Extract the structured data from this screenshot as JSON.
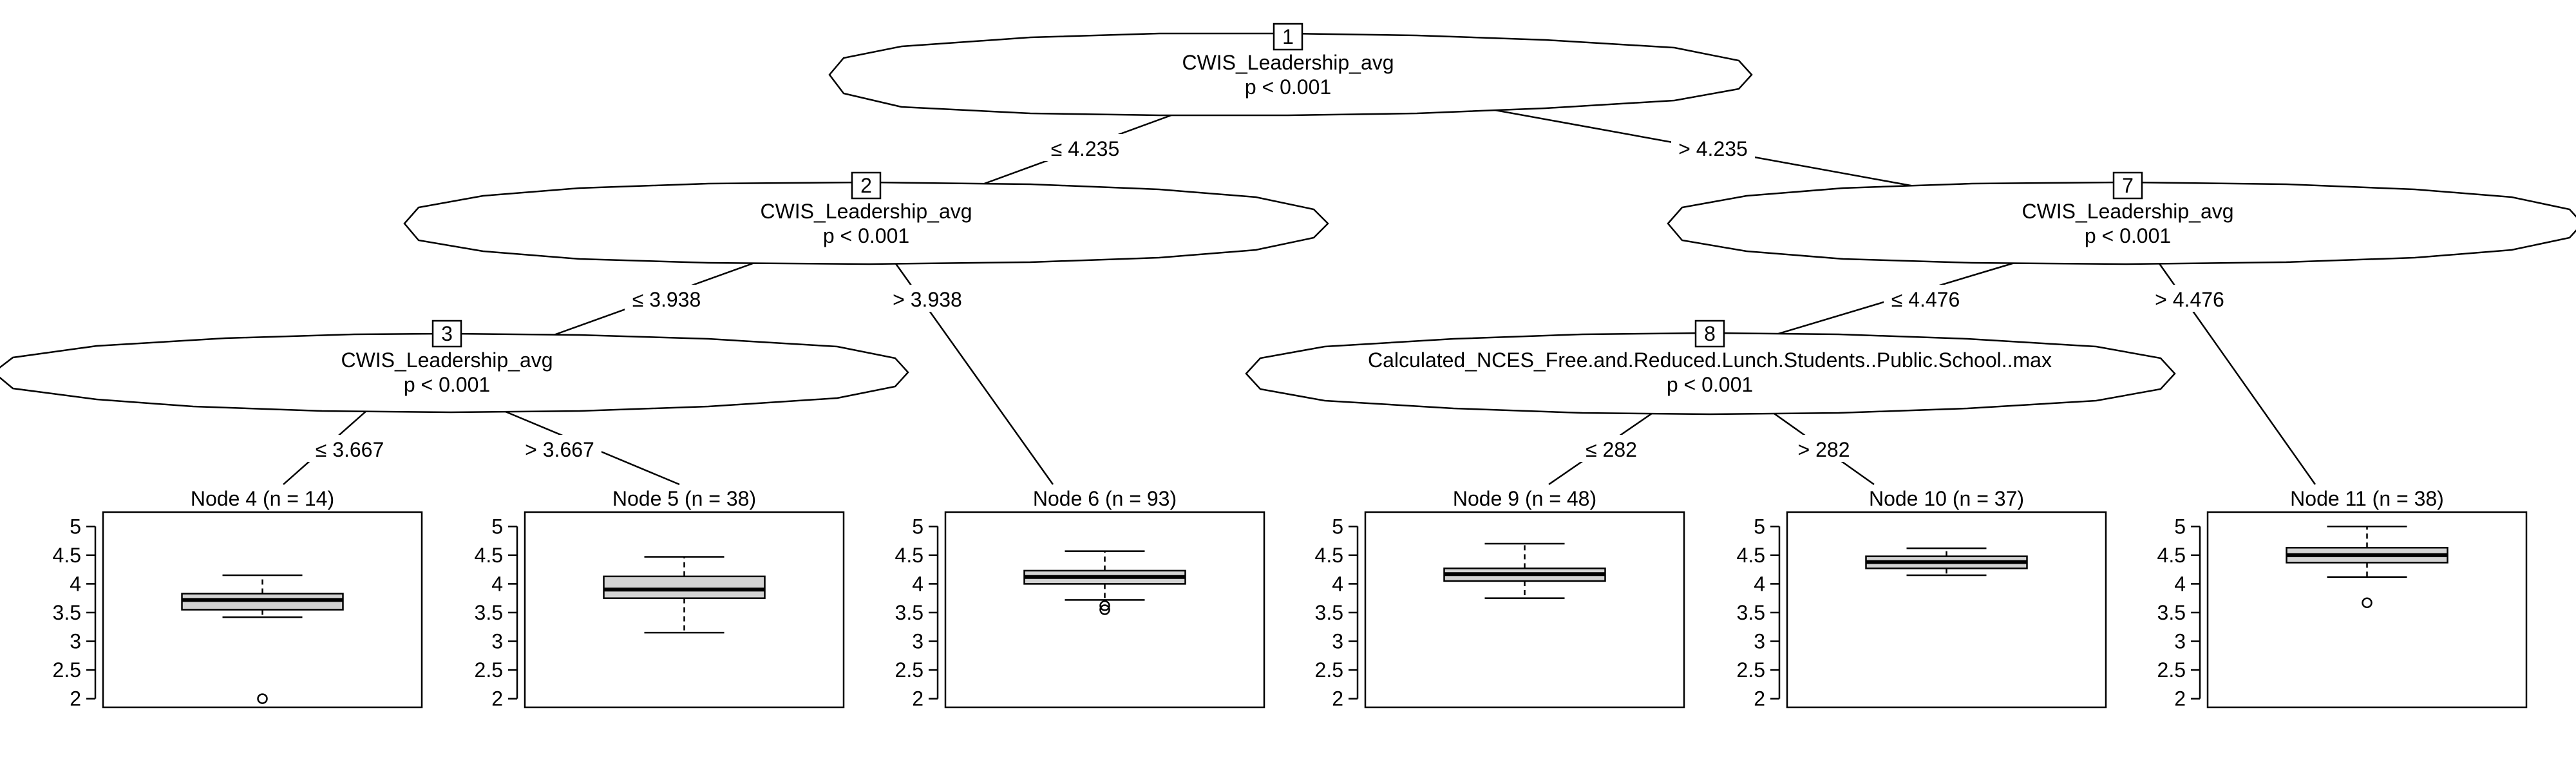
{
  "inner_nodes": [
    {
      "id": "1",
      "variable": "CWIS_Leadership_avg",
      "p": "p < 0.001"
    },
    {
      "id": "2",
      "variable": "CWIS_Leadership_avg",
      "p": "p < 0.001"
    },
    {
      "id": "3",
      "variable": "CWIS_Leadership_avg",
      "p": "p < 0.001"
    },
    {
      "id": "7",
      "variable": "CWIS_Leadership_avg",
      "p": "p < 0.001"
    },
    {
      "id": "8",
      "variable": "Calculated_NCES_Free.and.Reduced.Lunch.Students..Public.School..max",
      "p": "p < 0.001"
    }
  ],
  "edges": [
    {
      "from": "1",
      "to": "2",
      "label": "≤ 4.235"
    },
    {
      "from": "1",
      "to": "7",
      "label": "> 4.235"
    },
    {
      "from": "2",
      "to": "3",
      "label": "≤ 3.938"
    },
    {
      "from": "2",
      "to": "6",
      "label": "> 3.938"
    },
    {
      "from": "3",
      "to": "4",
      "label": "≤ 3.667"
    },
    {
      "from": "3",
      "to": "5",
      "label": "> 3.667"
    },
    {
      "from": "7",
      "to": "8",
      "label": "≤ 4.476"
    },
    {
      "from": "7",
      "to": "11",
      "label": "> 4.476"
    },
    {
      "from": "8",
      "to": "9",
      "label": "≤ 282"
    },
    {
      "from": "8",
      "to": "10",
      "label": "> 282"
    }
  ],
  "chart_data": {
    "type": "boxplot",
    "y_ticks": [
      "2",
      "2.5",
      "3",
      "3.5",
      "4",
      "4.5",
      "5"
    ],
    "ylim": [
      1.85,
      5.25
    ],
    "terminal_nodes": [
      {
        "id": "4",
        "title": "Node 4 (n = 14)",
        "min": 3.42,
        "q1": 3.55,
        "median": 3.72,
        "q3": 3.83,
        "max": 4.15,
        "outliers": [
          2.0
        ]
      },
      {
        "id": "5",
        "title": "Node 5 (n = 38)",
        "min": 3.15,
        "q1": 3.75,
        "median": 3.9,
        "q3": 4.13,
        "max": 4.47,
        "outliers": []
      },
      {
        "id": "6",
        "title": "Node 6 (n = 93)",
        "min": 3.72,
        "q1": 4.0,
        "median": 4.12,
        "q3": 4.23,
        "max": 4.57,
        "outliers": [
          3.55,
          3.62
        ]
      },
      {
        "id": "9",
        "title": "Node 9 (n = 48)",
        "min": 3.75,
        "q1": 4.05,
        "median": 4.17,
        "q3": 4.27,
        "max": 4.7,
        "outliers": []
      },
      {
        "id": "10",
        "title": "Node 10 (n = 37)",
        "min": 4.15,
        "q1": 4.27,
        "median": 4.38,
        "q3": 4.48,
        "max": 4.62,
        "outliers": []
      },
      {
        "id": "11",
        "title": "Node 11 (n = 38)",
        "min": 4.12,
        "q1": 4.37,
        "median": 4.5,
        "q3": 4.63,
        "max": 5.0,
        "outliers": [
          3.67
        ]
      }
    ]
  }
}
